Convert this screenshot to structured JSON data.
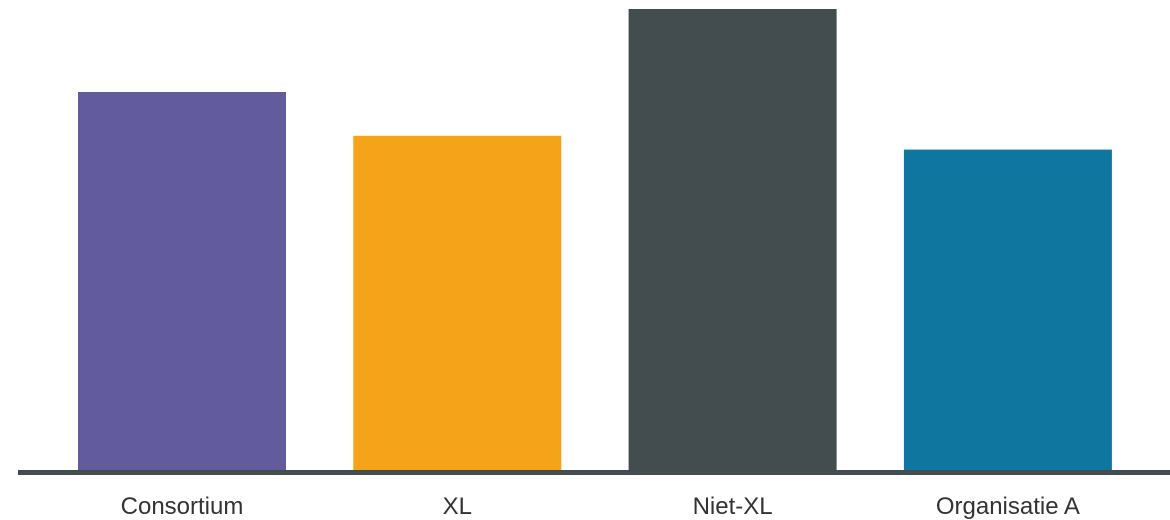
{
  "chart_data": {
    "type": "bar",
    "categories": [
      "Consortium",
      "XL",
      "Niet-XL",
      "Organisatie A"
    ],
    "values": [
      82,
      72.5,
      100,
      69.5
    ],
    "colors": [
      "#625c9f",
      "#f5a318",
      "#434d4f",
      "#0f76a0"
    ],
    "axis_color": "#434d4f",
    "ylim": [
      0,
      100
    ],
    "title": "",
    "xlabel": "",
    "ylabel": "",
    "grid": false,
    "legend": "none"
  }
}
